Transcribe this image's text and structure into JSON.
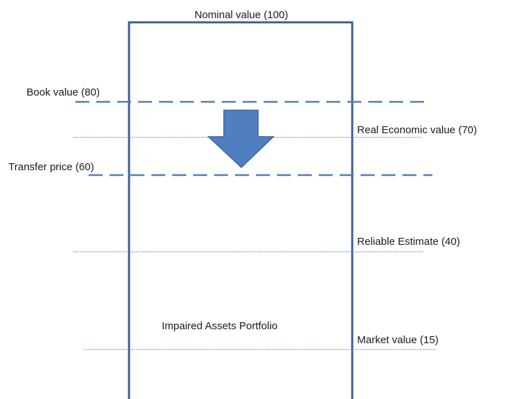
{
  "top_label": "Nominal value (100)",
  "box_label": "Impaired Assets Portfolio",
  "levels": [
    {
      "label": "Book value (80)"
    },
    {
      "label": "Real Economic value (70)"
    },
    {
      "label": "Transfer price (60)"
    },
    {
      "label": "Reliable Estimate (40)"
    },
    {
      "label": "Market value (15)"
    }
  ]
}
